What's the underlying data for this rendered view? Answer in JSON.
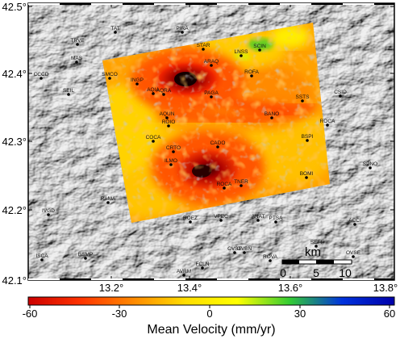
{
  "map": {
    "lat_ticks": [
      "42.5°",
      "42.4°",
      "42.3°",
      "42.2°",
      "42.1°"
    ],
    "lon_ticks": [
      "13.2°",
      "13.4°",
      "13.6°",
      "13.8°"
    ],
    "stations": [
      {
        "name": "TAT"
      },
      {
        "name": "PIRA"
      },
      {
        "name": "TRVE"
      },
      {
        "name": "STAR"
      },
      {
        "name": "SCIN"
      },
      {
        "name": "LNSS"
      },
      {
        "name": "MAS"
      },
      {
        "name": "ARAQ"
      },
      {
        "name": "CCCD"
      },
      {
        "name": "SMCO"
      },
      {
        "name": "INGP"
      },
      {
        "name": "ROFA"
      },
      {
        "name": "SEIL"
      },
      {
        "name": "AQIA"
      },
      {
        "name": "AQRA"
      },
      {
        "name": "PAGA"
      },
      {
        "name": "SSTS"
      },
      {
        "name": "CSID"
      },
      {
        "name": "AQUN"
      },
      {
        "name": "ROIO"
      },
      {
        "name": "BANO"
      },
      {
        "name": "ROCA"
      },
      {
        "name": "COCA"
      },
      {
        "name": "CADO"
      },
      {
        "name": "BSPI"
      },
      {
        "name": "CRTO"
      },
      {
        "name": "ILMO"
      },
      {
        "name": "SPNO"
      },
      {
        "name": "BOMI"
      },
      {
        "name": "TNER"
      },
      {
        "name": "ROCA"
      },
      {
        "name": "RAMA"
      },
      {
        "name": "ROEZ"
      },
      {
        "name": "VPEC"
      },
      {
        "name": "ANAT"
      },
      {
        "name": "PTSA"
      },
      {
        "name": "ACCI"
      },
      {
        "name": "IVGD"
      },
      {
        "name": "SEFI"
      },
      {
        "name": "CVSE"
      },
      {
        "name": "OVBN"
      },
      {
        "name": "ROVA"
      },
      {
        "name": "OVSE"
      },
      {
        "name": "BSMP"
      },
      {
        "name": "FCLN"
      },
      {
        "name": "AVRM"
      },
      {
        "name": "ISCA"
      }
    ],
    "scale_bar": {
      "unit": "km",
      "ticks": [
        "0",
        "5",
        "10"
      ]
    },
    "colorbar": {
      "ticks": [
        "-60",
        "-30",
        "0",
        "30",
        "60"
      ],
      "label": "Mean Velocity (mm/yr)",
      "stops": [
        "#cc0000",
        "#ff3300",
        "#ff8800",
        "#ffdd00",
        "#ffff00",
        "#33cc33",
        "#0033dd",
        "#0000aa"
      ]
    }
  }
}
